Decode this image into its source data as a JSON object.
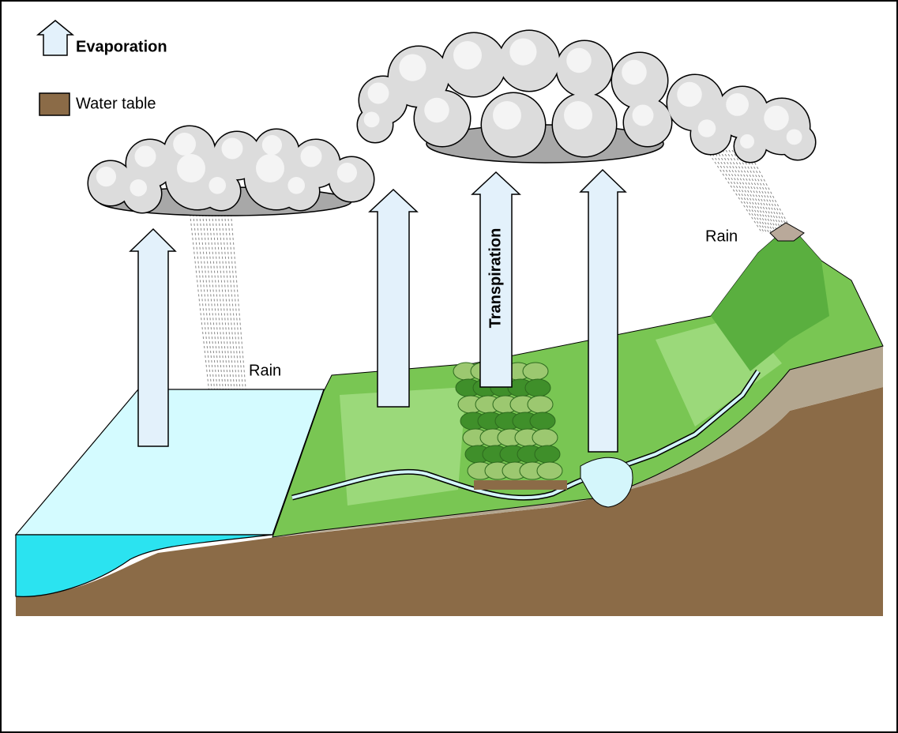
{
  "legend": [
    {
      "label": "Evaporation"
    },
    {
      "label": "Water table"
    }
  ],
  "labels": {
    "rain_left": "Rain",
    "rain_right": "Rain",
    "transpiration": "Transpiration"
  }
}
